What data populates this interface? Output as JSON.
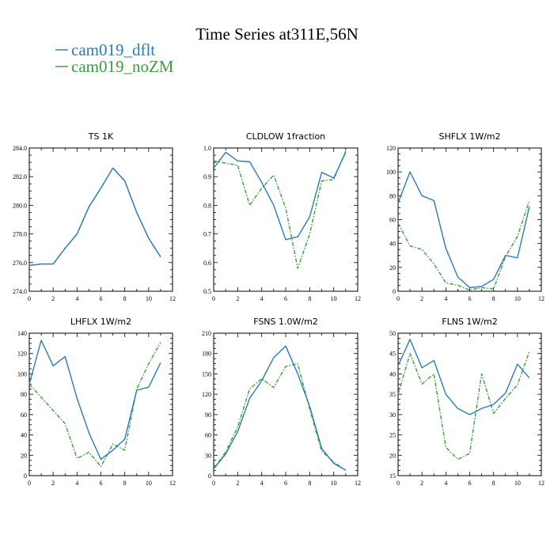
{
  "figure_title": "Time Series at311E,56N",
  "legend": [
    {
      "label": "cam019_dflt",
      "color": "#2b7bb9",
      "dash": "solid"
    },
    {
      "label": "cam019_noZM",
      "color": "#3a9e3a",
      "dash": "dashdot"
    }
  ],
  "chart_data": [
    {
      "type": "line",
      "title": "TS   1K",
      "xlim": [
        0,
        12
      ],
      "xticks": [
        0,
        2,
        4,
        6,
        8,
        10,
        12
      ],
      "ylim": [
        274.0,
        284.0
      ],
      "yticks": [
        274.0,
        276.0,
        278.0,
        280.0,
        282.0,
        284.0
      ],
      "ytick_labels": [
        "274.0",
        "276.0",
        "278.0",
        "280.0",
        "282.0",
        "284.0"
      ],
      "x": [
        0,
        1,
        2,
        3,
        4,
        5,
        6,
        7,
        8,
        9,
        10,
        11
      ],
      "series": [
        {
          "name": "cam019_dflt",
          "values": [
            275.8,
            275.9,
            275.9,
            277.0,
            278.0,
            279.9,
            281.2,
            282.6,
            281.7,
            279.5,
            277.7,
            276.4
          ]
        },
        {
          "name": "cam019_noZM",
          "values": [
            275.8,
            275.9,
            275.9,
            277.0,
            278.0,
            279.9,
            281.2,
            282.6,
            281.7,
            279.5,
            277.7,
            276.4
          ]
        }
      ]
    },
    {
      "type": "line",
      "title": "CLDLOW   1fraction",
      "xlim": [
        0,
        12
      ],
      "xticks": [
        0,
        2,
        4,
        6,
        8,
        10,
        12
      ],
      "ylim": [
        0.5,
        1.0
      ],
      "yticks": [
        0.5,
        0.6,
        0.7,
        0.8,
        0.9,
        1.0
      ],
      "ytick_labels": [
        "0.5",
        "0.6",
        "0.7",
        "0.8",
        "0.9",
        "1.0"
      ],
      "x": [
        0,
        1,
        2,
        3,
        4,
        5,
        6,
        7,
        8,
        9,
        10,
        11
      ],
      "series": [
        {
          "name": "cam019_dflt",
          "values": [
            0.93,
            0.985,
            0.955,
            0.952,
            0.88,
            0.8,
            0.68,
            0.69,
            0.76,
            0.915,
            0.895,
            0.985
          ]
        },
        {
          "name": "cam019_noZM",
          "values": [
            0.955,
            0.947,
            0.94,
            0.8,
            0.86,
            0.905,
            0.79,
            0.58,
            0.7,
            0.885,
            0.89,
            0.99
          ]
        }
      ]
    },
    {
      "type": "line",
      "title": "SHFLX   1W/m2",
      "xlim": [
        0,
        12
      ],
      "xticks": [
        0,
        2,
        4,
        6,
        8,
        10,
        12
      ],
      "ylim": [
        0,
        120
      ],
      "yticks": [
        0,
        20,
        40,
        60,
        80,
        100,
        120
      ],
      "ytick_labels": [
        "0",
        "20",
        "40",
        "60",
        "80",
        "100",
        "120"
      ],
      "x": [
        0,
        1,
        2,
        3,
        4,
        5,
        6,
        7,
        8,
        9,
        10,
        11
      ],
      "series": [
        {
          "name": "cam019_dflt",
          "values": [
            74,
            100,
            80,
            76,
            36,
            12,
            3,
            4,
            10,
            30,
            28,
            71
          ]
        },
        {
          "name": "cam019_noZM",
          "values": [
            57,
            38,
            35,
            23,
            7,
            5,
            1,
            3,
            2,
            29,
            46,
            76
          ]
        }
      ]
    },
    {
      "type": "line",
      "title": "LHFLX   1W/m2",
      "xlim": [
        0,
        12
      ],
      "xticks": [
        0,
        2,
        4,
        6,
        8,
        10,
        12
      ],
      "ylim": [
        0,
        140
      ],
      "yticks": [
        0,
        20,
        40,
        60,
        80,
        100,
        120,
        140
      ],
      "ytick_labels": [
        "0",
        "20",
        "40",
        "60",
        "80",
        "100",
        "120",
        "140"
      ],
      "x": [
        0,
        1,
        2,
        3,
        4,
        5,
        6,
        7,
        8,
        9,
        10,
        11
      ],
      "series": [
        {
          "name": "cam019_dflt",
          "values": [
            90,
            133,
            108,
            117,
            76,
            42,
            16,
            25,
            36,
            84,
            87,
            111
          ]
        },
        {
          "name": "cam019_noZM",
          "values": [
            90,
            77,
            64,
            51,
            17,
            23,
            9,
            31,
            25,
            85,
            110,
            131
          ]
        }
      ]
    },
    {
      "type": "line",
      "title": "FSNS   1.0W/m2",
      "xlim": [
        0,
        12
      ],
      "xticks": [
        0,
        2,
        4,
        6,
        8,
        10,
        12
      ],
      "ylim": [
        0,
        210
      ],
      "yticks": [
        0,
        30,
        60,
        90,
        120,
        150,
        180,
        210
      ],
      "ytick_labels": [
        "0",
        "30",
        "60",
        "90",
        "120",
        "150",
        "180",
        "210"
      ],
      "x": [
        0,
        1,
        2,
        3,
        4,
        5,
        6,
        7,
        8,
        9,
        10,
        11
      ],
      "series": [
        {
          "name": "cam019_dflt",
          "values": [
            10,
            32,
            65,
            114,
            140,
            174,
            191,
            150,
            102,
            40,
            18,
            8
          ]
        },
        {
          "name": "cam019_noZM",
          "values": [
            10,
            35,
            72,
            128,
            143,
            130,
            161,
            165,
            98,
            36,
            20,
            8
          ]
        }
      ]
    },
    {
      "type": "line",
      "title": "FLNS   1W/m2",
      "xlim": [
        0,
        12
      ],
      "xticks": [
        0,
        2,
        4,
        6,
        8,
        10,
        12
      ],
      "ylim": [
        15,
        50
      ],
      "yticks": [
        15,
        20,
        25,
        30,
        35,
        40,
        45,
        50
      ],
      "ytick_labels": [
        "15",
        "20",
        "25",
        "30",
        "35",
        "40",
        "45",
        "50"
      ],
      "x": [
        0,
        1,
        2,
        3,
        4,
        5,
        6,
        7,
        8,
        9,
        10,
        11
      ],
      "series": [
        {
          "name": "cam019_dflt",
          "values": [
            42,
            48.5,
            41.5,
            43.3,
            35,
            31.5,
            30,
            31.5,
            32.5,
            35.3,
            42.4,
            39
          ]
        },
        {
          "name": "cam019_noZM",
          "values": [
            35,
            45,
            37.5,
            40,
            22,
            19,
            20.5,
            40,
            30.3,
            34,
            37.3,
            45.5
          ]
        }
      ]
    }
  ]
}
